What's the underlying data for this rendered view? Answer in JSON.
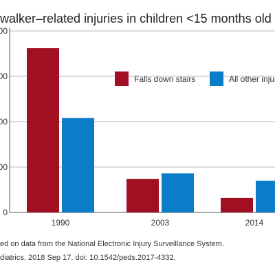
{
  "chart_data": {
    "type": "bar",
    "title": "walker–related injuries in children <15 months old",
    "categories": [
      "1990",
      "2003",
      "2014"
    ],
    "series": [
      {
        "name": "Falls down stairs",
        "values": [
          1810,
          370,
          160
        ],
        "color": "#a30f22"
      },
      {
        "name": "All other injuries",
        "values": [
          1040,
          430,
          350
        ],
        "color": "#0a7dc8"
      }
    ],
    "y_tick_labels": [
      "00",
      "00",
      "00",
      "00",
      "0"
    ],
    "ylim": [
      0,
      2000
    ],
    "y_ticks": [
      0,
      500,
      1000,
      1500,
      2000
    ],
    "grid": true,
    "legend_position": "top-right",
    "xlabel": "",
    "ylabel": ""
  },
  "source": {
    "line1": "ed on data from the National Electronic Injury Surveillance System.",
    "line2": "diatrics. 2018 Sep 17. doi: 10.1542/peds.2017-4332."
  }
}
